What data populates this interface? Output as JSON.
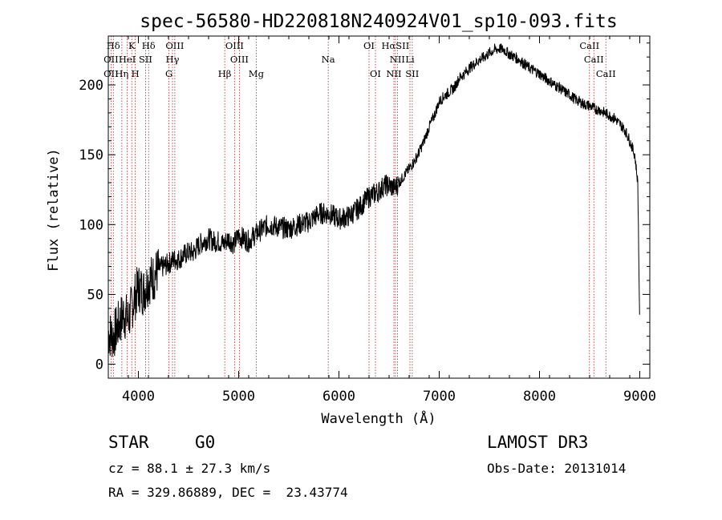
{
  "chart_data": {
    "type": "line",
    "title": "spec-56580-HD220818N240924V01_sp10-093.fits",
    "xlabel": "Wavelength (Å)",
    "ylabel": "Flux (relative)",
    "xlim": [
      3700,
      9100
    ],
    "ylim": [
      -10,
      235
    ],
    "x_ticks": [
      4000,
      5000,
      6000,
      7000,
      8000,
      9000
    ],
    "y_ticks": [
      0,
      50,
      100,
      150,
      200
    ],
    "series": [
      {
        "name": "spectrum",
        "x": [
          3700,
          3750,
          3800,
          3850,
          3900,
          3950,
          4000,
          4050,
          4100,
          4150,
          4200,
          4250,
          4300,
          4350,
          4400,
          4450,
          4500,
          4550,
          4600,
          4650,
          4700,
          4750,
          4800,
          4850,
          4900,
          4950,
          5000,
          5050,
          5100,
          5150,
          5200,
          5300,
          5400,
          5500,
          5600,
          5700,
          5800,
          5900,
          6000,
          6100,
          6200,
          6300,
          6350,
          6400,
          6450,
          6500,
          6550,
          6600,
          6650,
          6700,
          6750,
          6800,
          6850,
          6900,
          6950,
          7000,
          7050,
          7100,
          7150,
          7200,
          7250,
          7300,
          7350,
          7400,
          7450,
          7500,
          7550,
          7600,
          7650,
          7700,
          7750,
          7800,
          7850,
          7900,
          7950,
          8000,
          8050,
          8100,
          8150,
          8200,
          8250,
          8300,
          8350,
          8400,
          8450,
          8500,
          8550,
          8600,
          8650,
          8700,
          8750,
          8800,
          8850,
          8900,
          8950,
          8980,
          9000
        ],
        "y": [
          22,
          20,
          28,
          36,
          32,
          45,
          55,
          52,
          60,
          62,
          68,
          70,
          72,
          75,
          75,
          78,
          80,
          80,
          85,
          88,
          90,
          88,
          88,
          86,
          90,
          86,
          92,
          90,
          88,
          92,
          95,
          100,
          98,
          97,
          100,
          102,
          108,
          108,
          104,
          106,
          112,
          120,
          122,
          124,
          128,
          128,
          126,
          130,
          135,
          140,
          145,
          152,
          160,
          170,
          178,
          188,
          192,
          195,
          198,
          205,
          208,
          212,
          215,
          218,
          220,
          223,
          225,
          226,
          225,
          222,
          220,
          218,
          215,
          212,
          210,
          208,
          205,
          203,
          200,
          198,
          195,
          193,
          190,
          188,
          186,
          185,
          183,
          182,
          180,
          178,
          176,
          172,
          168,
          160,
          150,
          130,
          25
        ]
      }
    ],
    "spectral_lines": [
      {
        "label": "Hδ",
        "wavelength": 3750,
        "row": 1
      },
      {
        "label": "K",
        "wavelength": 3934,
        "row": 1
      },
      {
        "label": "Hδ",
        "wavelength": 4102,
        "row": 1
      },
      {
        "label": "OIII",
        "wavelength": 4363,
        "row": 1
      },
      {
        "label": "OIII",
        "wavelength": 4959,
        "row": 1
      },
      {
        "label": "OI",
        "wavelength": 6300,
        "row": 1
      },
      {
        "label": "HαSII",
        "wavelength": 6563,
        "row": 1
      },
      {
        "label": "CaII",
        "wavelength": 8498,
        "row": 1
      },
      {
        "label": "OII",
        "wavelength": 3727,
        "row": 2
      },
      {
        "label": "HeI",
        "wavelength": 3889,
        "row": 2
      },
      {
        "label": "SII",
        "wavelength": 4072,
        "row": 2
      },
      {
        "label": "Hγ",
        "wavelength": 4340,
        "row": 2
      },
      {
        "label": "OIII",
        "wavelength": 5007,
        "row": 2
      },
      {
        "label": "Na",
        "wavelength": 5893,
        "row": 2
      },
      {
        "label": "NII",
        "wavelength": 6583,
        "row": 2
      },
      {
        "label": "Li",
        "wavelength": 6708,
        "row": 2
      },
      {
        "label": "CaII",
        "wavelength": 8542,
        "row": 2
      },
      {
        "label": "OII",
        "wavelength": 3727,
        "row": 3
      },
      {
        "label": "Hη",
        "wavelength": 3835,
        "row": 3
      },
      {
        "label": "H",
        "wavelength": 3969,
        "row": 3
      },
      {
        "label": "G",
        "wavelength": 4305,
        "row": 3
      },
      {
        "label": "Hβ",
        "wavelength": 4861,
        "row": 3
      },
      {
        "label": "Mg",
        "wavelength": 5175,
        "row": 3
      },
      {
        "label": "OI",
        "wavelength": 6364,
        "row": 3
      },
      {
        "label": "NII",
        "wavelength": 6548,
        "row": 3
      },
      {
        "label": "SII",
        "wavelength": 6731,
        "row": 3
      },
      {
        "label": "CaII",
        "wavelength": 8662,
        "row": 3
      }
    ],
    "marker_lines": [
      3727,
      3750,
      3835,
      3889,
      3934,
      3969,
      4072,
      4102,
      4305,
      4340,
      4363,
      4861,
      4959,
      5007,
      5175,
      5893,
      6300,
      6364,
      6548,
      6563,
      6583,
      6708,
      6731,
      8498,
      8542,
      8662
    ]
  },
  "info": {
    "object_class": "STAR",
    "subclass": "G0",
    "survey": "LAMOST DR3",
    "cz": "cz = 88.1 ± 27.3 km/s",
    "obs_date": "Obs-Date: 20131014",
    "coords": "RA = 329.86889, DEC =  23.43774"
  },
  "colors": {
    "line": "#000000",
    "marker": "#b22222"
  }
}
